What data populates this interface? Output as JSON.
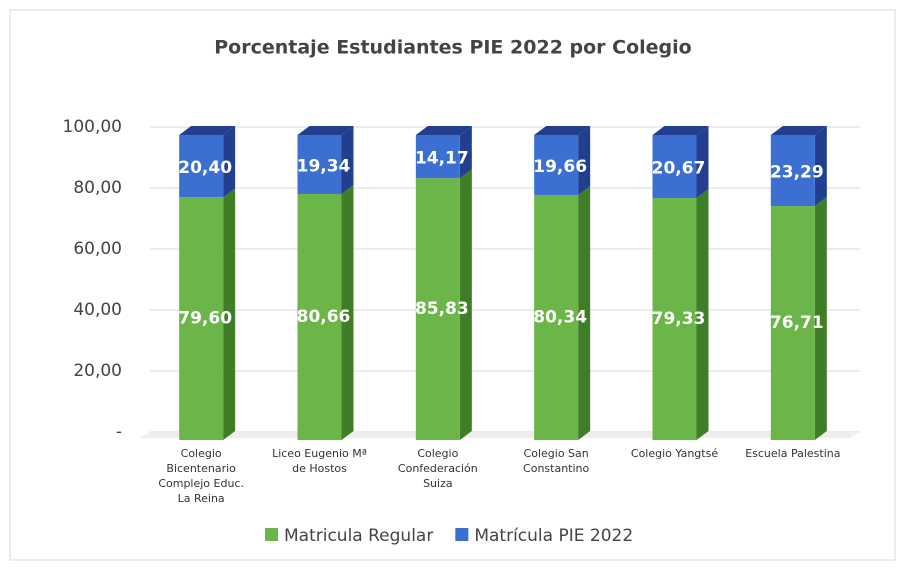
{
  "chart_data": {
    "type": "stacked-bar-3d",
    "title": "Porcentaje Estudiantes PIE 2022 por Colegio",
    "categories": [
      "Colegio Bicentenario Complejo Educ. La Reina",
      "Liceo Eugenio Mª de Hostos",
      "Colegio Confederación Suiza",
      "Colegio San Constantino",
      "Colegio Yangtsé",
      "Escuela Palestina"
    ],
    "series": [
      {
        "name": "Matricula Regular",
        "color": "#6cb548",
        "side": "#3f7d26",
        "values": [
          79.6,
          80.66,
          85.83,
          80.34,
          79.33,
          76.71
        ],
        "value_labels": [
          "79,60",
          "80,66",
          "85,83",
          "80,34",
          "79,33",
          "76,71"
        ]
      },
      {
        "name": "Matrícula PIE 2022",
        "color": "#3b6fd2",
        "side": "#213f8e",
        "values": [
          20.4,
          19.34,
          14.17,
          19.66,
          20.67,
          23.29
        ],
        "value_labels": [
          "20,40",
          "19,34",
          "14,17",
          "19,66",
          "20,67",
          "23,29"
        ]
      }
    ],
    "ylim": [
      0,
      100
    ],
    "yticks": [
      {
        "value": 0,
        "label": "-"
      },
      {
        "value": 20,
        "label": "20,00"
      },
      {
        "value": 40,
        "label": "40,00"
      },
      {
        "value": 60,
        "label": "60,00"
      },
      {
        "value": 80,
        "label": "80,00"
      },
      {
        "value": 100,
        "label": "100,00"
      }
    ],
    "grid": true,
    "legend": "bottom"
  }
}
